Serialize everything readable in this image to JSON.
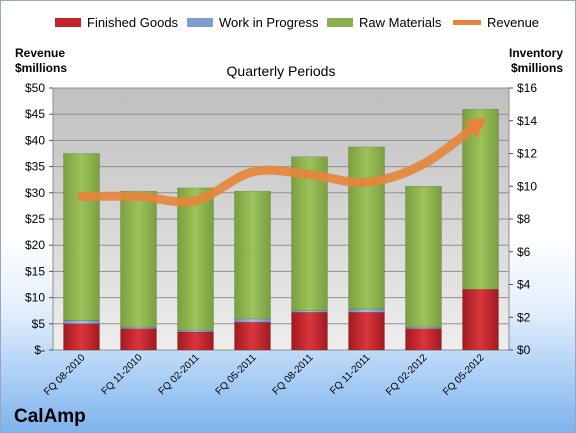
{
  "company": "CalAmp",
  "chart_data": {
    "type": "bar",
    "stacked": true,
    "title": "",
    "subtitle": "Quarterly Periods",
    "categories": [
      "FQ 08-2010",
      "FQ 11-2010",
      "FQ 02-2011",
      "FQ 05-2011",
      "FQ 08-2011",
      "FQ 11-2011",
      "FQ 02-2012",
      "FQ 05-2012"
    ],
    "left_axis": {
      "label_line1": "Revenue",
      "label_line2": "$millions",
      "range": [
        0,
        50
      ],
      "ticks": [
        "$-",
        "$5",
        "$10",
        "$15",
        "$20",
        "$25",
        "$30",
        "$35",
        "$40",
        "$45",
        "$50"
      ]
    },
    "right_axis": {
      "label_line1": "Inventory",
      "label_line2": "$millions",
      "range": [
        0,
        16
      ],
      "ticks": [
        "$0",
        "$2",
        "$4",
        "$6",
        "$8",
        "$10",
        "$12",
        "$14",
        "$16"
      ]
    },
    "series": [
      {
        "name": "Finished Goods",
        "axis": "right",
        "color": "#c0252c",
        "values": [
          1.6,
          1.3,
          1.1,
          1.7,
          2.3,
          2.3,
          1.3,
          3.7
        ]
      },
      {
        "name": "Work in Progress",
        "axis": "right",
        "color": "#7f9fcf",
        "values": [
          0.2,
          0.1,
          0.1,
          0.2,
          0.1,
          0.2,
          0.1,
          0.0
        ]
      },
      {
        "name": "Raw Materials",
        "axis": "right",
        "color": "#8bb04f",
        "values": [
          10.2,
          8.3,
          8.7,
          7.8,
          9.4,
          9.9,
          8.6,
          11.0
        ]
      },
      {
        "name": "Revenue",
        "axis": "left",
        "type": "line",
        "color": "#e8843a",
        "values": [
          29.3,
          29.3,
          28.5,
          34.0,
          33.5,
          32.0,
          35.5,
          43.5
        ]
      }
    ],
    "grid": true,
    "legend": "top"
  }
}
